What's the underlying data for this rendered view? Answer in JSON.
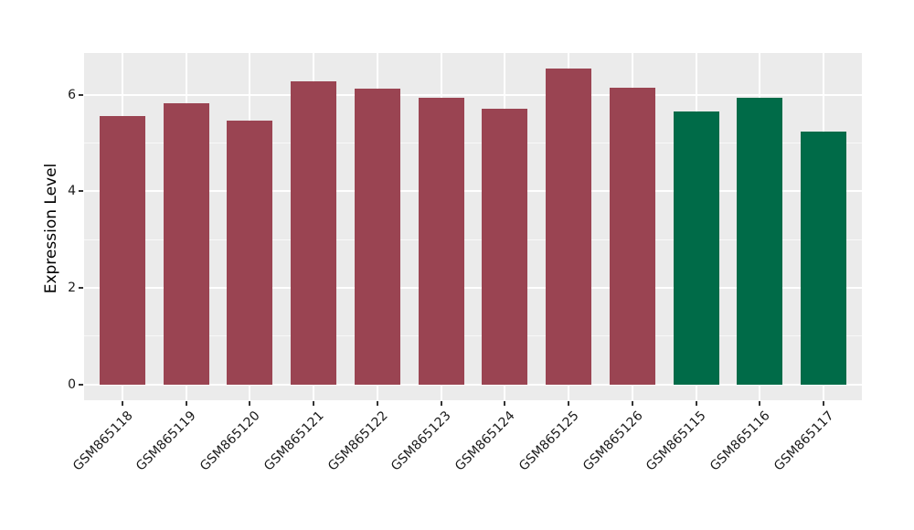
{
  "chart": {
    "ylabel": "Expression Level",
    "panel_bg": "#ebebeb",
    "grid_color": "#ffffff",
    "tick_mark_color": "#333333",
    "tick_label_color": "#1a1a1a"
  },
  "chart_data": {
    "type": "bar",
    "title": "",
    "xlabel": "",
    "ylabel": "Expression Level",
    "categories": [
      "GSM865118",
      "GSM865119",
      "GSM865120",
      "GSM865121",
      "GSM865122",
      "GSM865123",
      "GSM865124",
      "GSM865125",
      "GSM865126",
      "GSM865115",
      "GSM865116",
      "GSM865117"
    ],
    "values": [
      5.57,
      5.82,
      5.47,
      6.28,
      6.13,
      5.95,
      5.72,
      6.54,
      6.15,
      5.65,
      5.94,
      5.25
    ],
    "bar_colors": [
      "#9a4452",
      "#9a4452",
      "#9a4452",
      "#9a4452",
      "#9a4452",
      "#9a4452",
      "#9a4452",
      "#9a4452",
      "#9a4452",
      "#006b48",
      "#006b48",
      "#006b48"
    ],
    "group_colors": {
      "red_group": "#9a4452",
      "green_group": "#006b48"
    },
    "ylim": [
      -0.33,
      6.87
    ],
    "yticks": [
      0,
      2,
      4,
      6
    ],
    "minor_yticks": [
      1,
      3,
      5
    ],
    "grid": "on",
    "legend": "none"
  }
}
